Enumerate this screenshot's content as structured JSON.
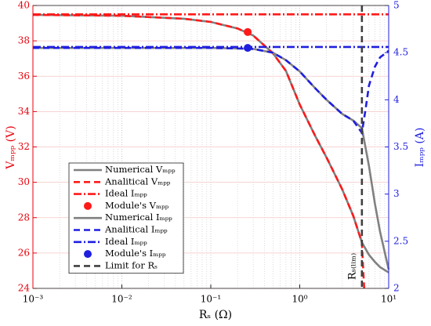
{
  "chart_data": {
    "type": "line",
    "xlabel": "Rₛ (Ω)",
    "ylabel": "Vₘₚₚ (V)",
    "y2label": "Iₘₚₚ (A)",
    "xscale": "log",
    "grid": true,
    "legend": "lower left",
    "ycolor": "#e8000b",
    "y2color": "#1f1fe0",
    "xlim": [
      0.001,
      10
    ],
    "xticks": [
      {
        "value": 0.001,
        "label": "10⁻³"
      },
      {
        "value": 0.01,
        "label": "10⁻²"
      },
      {
        "value": 0.1,
        "label": "10⁻¹"
      },
      {
        "value": 1,
        "label": "10⁰"
      },
      {
        "value": 10,
        "label": "10¹"
      }
    ],
    "ylim": [
      24,
      40
    ],
    "yticks": [
      24,
      26,
      28,
      30,
      32,
      34,
      36,
      38,
      40
    ],
    "y2lim": [
      2,
      5
    ],
    "y2ticks": [
      2,
      2.5,
      3,
      3.5,
      4,
      4.5,
      5
    ],
    "series": [
      {
        "name": "Numerical Vₘₚₚ",
        "color": "#808080",
        "style": "solid",
        "axis": "y",
        "x": [
          0.001,
          0.01,
          0.05,
          0.1,
          0.2,
          0.3,
          0.5,
          0.7,
          1,
          1.5,
          2,
          3,
          4,
          5,
          6,
          7,
          8,
          10
        ],
        "values": [
          39.47,
          39.42,
          39.25,
          39.07,
          38.7,
          38.3,
          37.3,
          36.3,
          34.4,
          32.6,
          31.4,
          29.6,
          28.1,
          26.6,
          25.9,
          25.5,
          25.2,
          24.9
        ]
      },
      {
        "name": "Analitical Vₘₚₚ",
        "color": "#ff1a1a",
        "style": "dashed",
        "axis": "y",
        "x": [
          0.001,
          0.01,
          0.05,
          0.1,
          0.2,
          0.3,
          0.5,
          0.7,
          1,
          1.5,
          2,
          3,
          4,
          5,
          5.3
        ],
        "values": [
          39.47,
          39.42,
          39.25,
          39.07,
          38.7,
          38.3,
          37.3,
          36.3,
          34.4,
          32.6,
          31.4,
          29.6,
          28.1,
          26.6,
          24
        ]
      },
      {
        "name": "Ideal Iₘₚₚ",
        "color": "#ff1a1a",
        "style": "dashdot",
        "axis": "y",
        "x": [
          0.001,
          10
        ],
        "values": [
          39.5,
          39.5
        ]
      },
      {
        "name": "Module's Vₘₚₚ",
        "color": "#ff1a1a",
        "style": "marker",
        "axis": "y",
        "x": [
          0.26
        ],
        "values": [
          38.5
        ]
      },
      {
        "name": "Numerical Iₘₚₚ",
        "color": "#808080",
        "style": "solid",
        "axis": "y2",
        "x": [
          0.001,
          0.01,
          0.1,
          0.2,
          0.3,
          0.5,
          0.7,
          1,
          1.5,
          2,
          3,
          4,
          5,
          6,
          7,
          8,
          10
        ],
        "values": [
          4.55,
          4.55,
          4.55,
          4.545,
          4.54,
          4.5,
          4.42,
          4.3,
          4.12,
          4.0,
          3.85,
          3.78,
          3.7,
          3.3,
          2.9,
          2.6,
          2.2
        ]
      },
      {
        "name": "Analitical Iₘₚₚ",
        "color": "#1f1fe0",
        "style": "dashed",
        "axis": "y2",
        "x": [
          0.001,
          0.01,
          0.1,
          0.2,
          0.3,
          0.5,
          0.7,
          1,
          1.5,
          2,
          3,
          4,
          5,
          5.5,
          6,
          7,
          8,
          10
        ],
        "values": [
          4.55,
          4.55,
          4.55,
          4.545,
          4.54,
          4.5,
          4.42,
          4.3,
          4.12,
          4.0,
          3.85,
          3.78,
          3.65,
          3.9,
          4.15,
          4.35,
          4.45,
          4.52
        ]
      },
      {
        "name": "Ideal Iₘₚₚ",
        "color": "#1f1fe0",
        "style": "dashdot",
        "axis": "y2",
        "x": [
          0.001,
          10
        ],
        "values": [
          4.56,
          4.56
        ]
      },
      {
        "name": "Module's Iₘₚₚ",
        "color": "#1f1fe0",
        "style": "marker",
        "axis": "y2",
        "x": [
          0.26
        ],
        "values": [
          4.55
        ]
      }
    ],
    "limit": {
      "name": "Limit for Rₛ",
      "color": "#404040",
      "x": 5,
      "annotation": "Rₛ₍ₗᵢₘ₎"
    }
  }
}
